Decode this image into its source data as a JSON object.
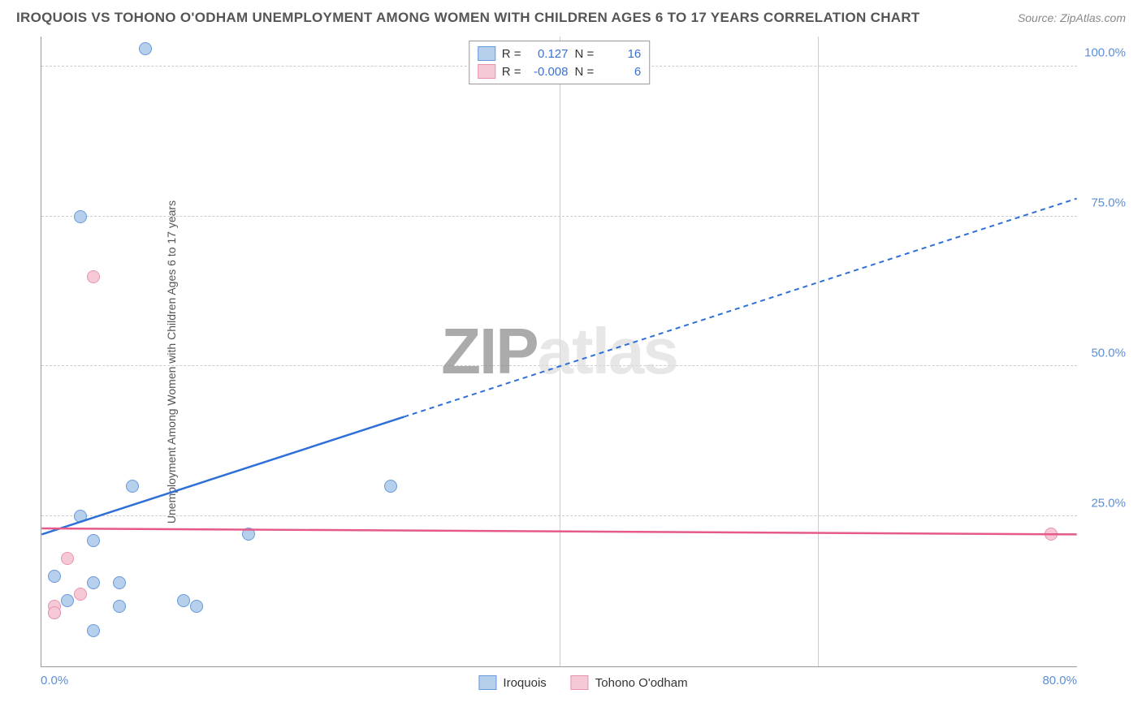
{
  "title": "IROQUOIS VS TOHONO O'ODHAM UNEMPLOYMENT AMONG WOMEN WITH CHILDREN AGES 6 TO 17 YEARS CORRELATION CHART",
  "source": "Source: ZipAtlas.com",
  "y_axis_label": "Unemployment Among Women with Children Ages 6 to 17 years",
  "watermark": {
    "bold": "ZIP",
    "light": "atlas"
  },
  "chart": {
    "type": "scatter-correlation",
    "xlim": [
      0,
      80
    ],
    "ylim": [
      0,
      105
    ],
    "x_ticks": [
      0,
      80
    ],
    "x_tick_labels": [
      "0.0%",
      "80.0%"
    ],
    "x_minor_gridlines": [
      40,
      60
    ],
    "y_ticks": [
      25,
      50,
      75,
      100
    ],
    "y_tick_labels": [
      "25.0%",
      "50.0%",
      "75.0%",
      "100.0%"
    ],
    "background_color": "#ffffff",
    "grid_color": "#cccccc",
    "axis_color": "#999999",
    "label_color": "#5b8fd6"
  },
  "series": [
    {
      "name": "Iroquois",
      "fill_color": "#b6d0ec",
      "stroke_color": "#6699dd",
      "line_color": "#2e6fd8",
      "r": "0.127",
      "n": "16",
      "trend": {
        "x1": 0,
        "y1": 22,
        "x2": 80,
        "y2": 78,
        "solid_until_x": 28
      },
      "points": [
        {
          "x": 8,
          "y": 103
        },
        {
          "x": 3,
          "y": 75
        },
        {
          "x": 7,
          "y": 30
        },
        {
          "x": 27,
          "y": 30
        },
        {
          "x": 3,
          "y": 25
        },
        {
          "x": 16,
          "y": 22
        },
        {
          "x": 4,
          "y": 21
        },
        {
          "x": 1,
          "y": 15
        },
        {
          "x": 4,
          "y": 14
        },
        {
          "x": 6,
          "y": 14
        },
        {
          "x": 2,
          "y": 11
        },
        {
          "x": 11,
          "y": 11
        },
        {
          "x": 6,
          "y": 10
        },
        {
          "x": 12,
          "y": 10
        },
        {
          "x": 1,
          "y": 9
        },
        {
          "x": 4,
          "y": 6
        }
      ]
    },
    {
      "name": "Tohono O'odham",
      "fill_color": "#f6c9d6",
      "stroke_color": "#e893ac",
      "line_color": "#e55a8a",
      "r": "-0.008",
      "n": "6",
      "trend": {
        "x1": 0,
        "y1": 23,
        "x2": 80,
        "y2": 22,
        "solid_until_x": 80
      },
      "points": [
        {
          "x": 4,
          "y": 65
        },
        {
          "x": 78,
          "y": 22
        },
        {
          "x": 2,
          "y": 18
        },
        {
          "x": 3,
          "y": 12
        },
        {
          "x": 1,
          "y": 10
        },
        {
          "x": 1,
          "y": 9
        }
      ]
    }
  ],
  "legend_top": {
    "r_label": "R =",
    "n_label": "N ="
  },
  "legend_bottom": [
    {
      "label": "Iroquois",
      "series": 0
    },
    {
      "label": "Tohono O'odham",
      "series": 1
    }
  ]
}
